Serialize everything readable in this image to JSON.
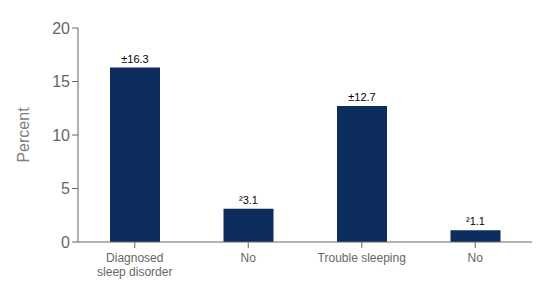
{
  "chart_data": {
    "type": "bar",
    "categories": [
      "Diagnosed\nsleep disorder",
      "No",
      "Trouble sleeping",
      "No"
    ],
    "values": [
      16.3,
      3.1,
      12.7,
      1.1
    ],
    "value_labels": [
      "±16.3",
      "²3.1",
      "±12.7",
      "²1.1"
    ],
    "data_labels": true,
    "color": "#0d2d5e",
    "ylabel": "Percent",
    "ylim": [
      0,
      20
    ],
    "yticks": [
      0,
      5,
      10,
      15,
      20
    ],
    "grid": false
  }
}
